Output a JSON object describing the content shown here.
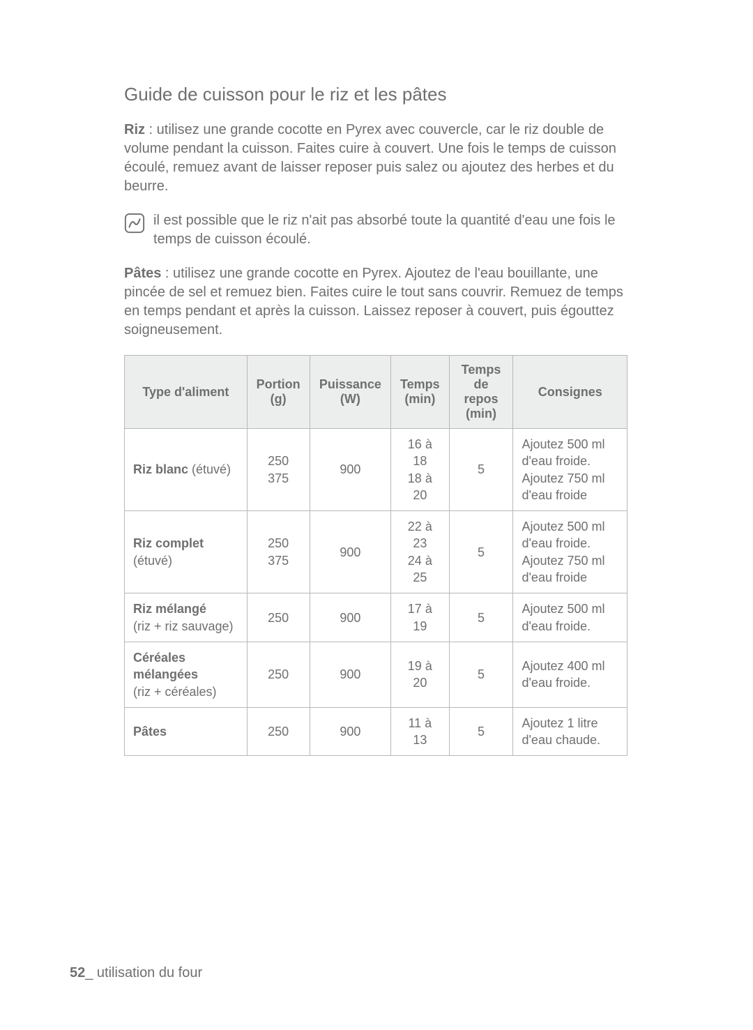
{
  "title": "Guide de cuisson pour le riz et les pâtes",
  "riz_para": {
    "label": "Riz",
    "text": " : utilisez une grande cocotte en Pyrex avec couvercle, car le riz double de volume pendant la cuisson. Faites cuire à couvert. Une fois le temps de cuisson écoulé, remuez avant de laisser reposer puis salez ou ajoutez des herbes et du beurre."
  },
  "note": "il est possible que le riz n'ait pas absorbé toute la quantité d'eau une fois le temps de cuisson écoulé.",
  "pates_para": {
    "label": "Pâtes",
    "text": " : utilisez une grande cocotte en Pyrex. Ajoutez de l'eau bouillante, une pincée de sel et remuez bien. Faites cuire le tout sans couvrir. Remuez de temps en temps pendant et après la cuisson. Laissez reposer à couvert, puis égouttez soigneusement."
  },
  "table": {
    "headers": {
      "type": "Type d'aliment",
      "portion": "Portion (g)",
      "power": "Puissance (W)",
      "time": "Temps (min)",
      "rest": "Temps de repos (min)",
      "instr": "Consignes"
    },
    "rows": [
      {
        "type_bold": "Riz blanc ",
        "type_plain": "(étuvé)",
        "portion": "250\n375",
        "power": "900",
        "time": "16 à 18\n18 à 20",
        "rest": "5",
        "instr": "Ajoutez 500 ml d'eau froide.\nAjoutez 750 ml d'eau froide"
      },
      {
        "type_bold": "Riz complet ",
        "type_plain": "(étuvé)",
        "portion": "250\n375",
        "power": "900",
        "time": "22 à 23\n24 à 25",
        "rest": "5",
        "instr": "Ajoutez 500 ml d'eau froide.\nAjoutez 750 ml d'eau froide"
      },
      {
        "type_bold": "Riz mélangé",
        "type_plain": "\n(riz + riz sauvage)",
        "portion": "250",
        "power": "900",
        "time": "17 à 19",
        "rest": "5",
        "instr": "Ajoutez 500 ml d'eau froide."
      },
      {
        "type_bold": "Céréales mélangées",
        "type_plain": "\n(riz + céréales)",
        "portion": "250",
        "power": "900",
        "time": "19 à 20",
        "rest": "5",
        "instr": "Ajoutez 400 ml d'eau froide."
      },
      {
        "type_bold": "Pâtes",
        "type_plain": "",
        "portion": "250",
        "power": "900",
        "time": "11 à 13",
        "rest": "5",
        "instr": "Ajoutez 1 litre d'eau chaude."
      }
    ]
  },
  "footer": {
    "page": "52",
    "section": "_ utilisation du four"
  },
  "styles": {
    "text_color": "#6f6f6f",
    "header_bg": "#eceded",
    "border_color": "#b8b8b8",
    "background": "#ffffff",
    "title_fontsize": 26,
    "body_fontsize": 20,
    "table_fontsize": 18,
    "icon_stroke": "#6f6f6f"
  }
}
